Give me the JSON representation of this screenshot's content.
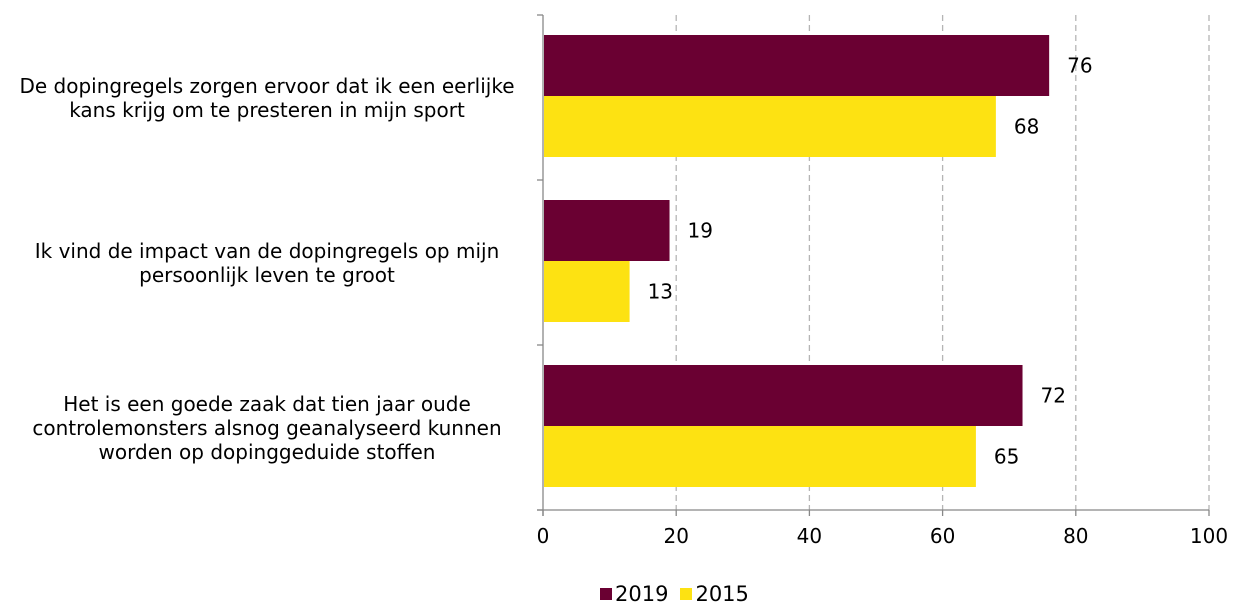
{
  "chart_data": {
    "type": "bar",
    "orientation": "horizontal",
    "categories": [
      "De dopingregels zorgen ervoor dat ik een eerlijke kans krijg om te presteren in mijn sport",
      "Ik vind de impact van de dopingregels op mijn persoonlijk leven te groot",
      "Het is een goede zaak dat tien jaar oude controlemonsters alsnog geanalyseerd kunnen worden op dopinggeduide stoffen"
    ],
    "category_lines": [
      [
        "De dopingregels zorgen ervoor dat ik een eerlijke",
        "kans krijg om te presteren in mijn sport"
      ],
      [
        "Ik vind de impact van de dopingregels op mijn",
        "persoonlijk leven te groot"
      ],
      [
        "Het is een goede zaak dat tien jaar oude",
        "controlemonsters alsnog geanalyseerd kunnen",
        "worden op dopinggeduide stoffen"
      ]
    ],
    "series": [
      {
        "name": "2019",
        "color": "#6a0032",
        "values": [
          76,
          19,
          72
        ]
      },
      {
        "name": "2015",
        "color": "#fde212",
        "values": [
          68,
          13,
          65
        ]
      }
    ],
    "xlim": [
      0,
      100
    ],
    "xticks": [
      0,
      20,
      40,
      60,
      80,
      100
    ],
    "grid": "vertical-dashed",
    "legend_position": "bottom",
    "data_labels": true
  }
}
